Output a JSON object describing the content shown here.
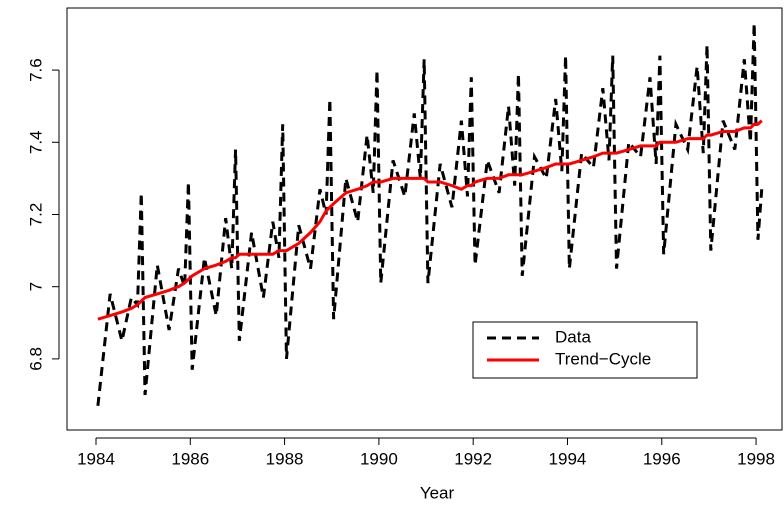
{
  "chart_data": {
    "type": "line",
    "x_label": "Year",
    "x": [
      1984.04,
      1984.3,
      1984.55,
      1984.75,
      1984.88,
      1984.96,
      1985.04,
      1985.3,
      1985.55,
      1985.75,
      1985.88,
      1985.96,
      1986.04,
      1986.3,
      1986.55,
      1986.75,
      1986.88,
      1986.96,
      1987.04,
      1987.3,
      1987.55,
      1987.75,
      1987.88,
      1987.96,
      1988.04,
      1988.3,
      1988.55,
      1988.75,
      1988.88,
      1988.96,
      1989.04,
      1989.3,
      1989.55,
      1989.75,
      1989.88,
      1989.96,
      1990.04,
      1990.3,
      1990.55,
      1990.75,
      1990.88,
      1990.96,
      1991.04,
      1991.3,
      1991.55,
      1991.75,
      1991.88,
      1991.96,
      1992.04,
      1992.3,
      1992.55,
      1992.75,
      1992.88,
      1992.96,
      1993.04,
      1993.3,
      1993.55,
      1993.75,
      1993.88,
      1993.96,
      1994.04,
      1994.3,
      1994.55,
      1994.75,
      1994.88,
      1994.96,
      1995.04,
      1995.3,
      1995.55,
      1995.75,
      1995.88,
      1995.96,
      1996.04,
      1996.3,
      1996.55,
      1996.75,
      1996.88,
      1996.96,
      1997.04,
      1997.3,
      1997.55,
      1997.75,
      1997.88,
      1997.96,
      1998.04,
      1998.12
    ],
    "series": [
      {
        "name": "Data",
        "color": "#000000",
        "linestyle": "dashed",
        "values": [
          6.67,
          6.98,
          6.85,
          6.97,
          6.95,
          7.26,
          6.7,
          7.06,
          6.88,
          7.05,
          7.0,
          7.29,
          6.77,
          7.08,
          6.92,
          7.19,
          7.05,
          7.38,
          6.85,
          7.15,
          6.97,
          7.18,
          7.08,
          7.45,
          6.8,
          7.17,
          7.05,
          7.27,
          7.2,
          7.52,
          6.91,
          7.3,
          7.18,
          7.42,
          7.26,
          7.6,
          7.01,
          7.35,
          7.25,
          7.48,
          7.3,
          7.63,
          7.01,
          7.34,
          7.22,
          7.46,
          7.25,
          7.58,
          7.06,
          7.35,
          7.26,
          7.5,
          7.28,
          7.59,
          7.03,
          7.36,
          7.3,
          7.52,
          7.32,
          7.64,
          7.05,
          7.37,
          7.33,
          7.55,
          7.35,
          7.64,
          7.05,
          7.4,
          7.36,
          7.58,
          7.34,
          7.64,
          7.09,
          7.45,
          7.38,
          7.61,
          7.37,
          7.67,
          7.1,
          7.46,
          7.38,
          7.63,
          7.4,
          7.73,
          7.13,
          7.27
        ]
      },
      {
        "name": "Trend−Cycle",
        "color": "#ff0000",
        "linestyle": "solid",
        "values": [
          6.91,
          6.92,
          6.93,
          6.94,
          6.95,
          6.96,
          6.97,
          6.98,
          6.99,
          7.0,
          7.01,
          7.02,
          7.03,
          7.05,
          7.06,
          7.07,
          7.08,
          7.08,
          7.09,
          7.09,
          7.09,
          7.09,
          7.1,
          7.1,
          7.1,
          7.12,
          7.15,
          7.18,
          7.21,
          7.22,
          7.23,
          7.26,
          7.27,
          7.28,
          7.29,
          7.29,
          7.29,
          7.3,
          7.3,
          7.3,
          7.3,
          7.3,
          7.29,
          7.29,
          7.28,
          7.27,
          7.28,
          7.28,
          7.29,
          7.3,
          7.3,
          7.31,
          7.31,
          7.31,
          7.31,
          7.32,
          7.33,
          7.34,
          7.34,
          7.34,
          7.34,
          7.35,
          7.36,
          7.37,
          7.37,
          7.37,
          7.37,
          7.38,
          7.39,
          7.39,
          7.39,
          7.4,
          7.4,
          7.4,
          7.41,
          7.41,
          7.41,
          7.42,
          7.42,
          7.43,
          7.43,
          7.44,
          7.44,
          7.45,
          7.45,
          7.46
        ]
      }
    ],
    "xlim": [
      1983.385,
      1998.55
    ],
    "xticks": [
      1984,
      1986,
      1988,
      1990,
      1992,
      1994,
      1996,
      1998
    ],
    "ylim": [
      6.603,
      7.772
    ],
    "yticks": [
      6.8,
      7.0,
      7.2,
      7.4,
      7.6
    ],
    "grid": false
  }
}
